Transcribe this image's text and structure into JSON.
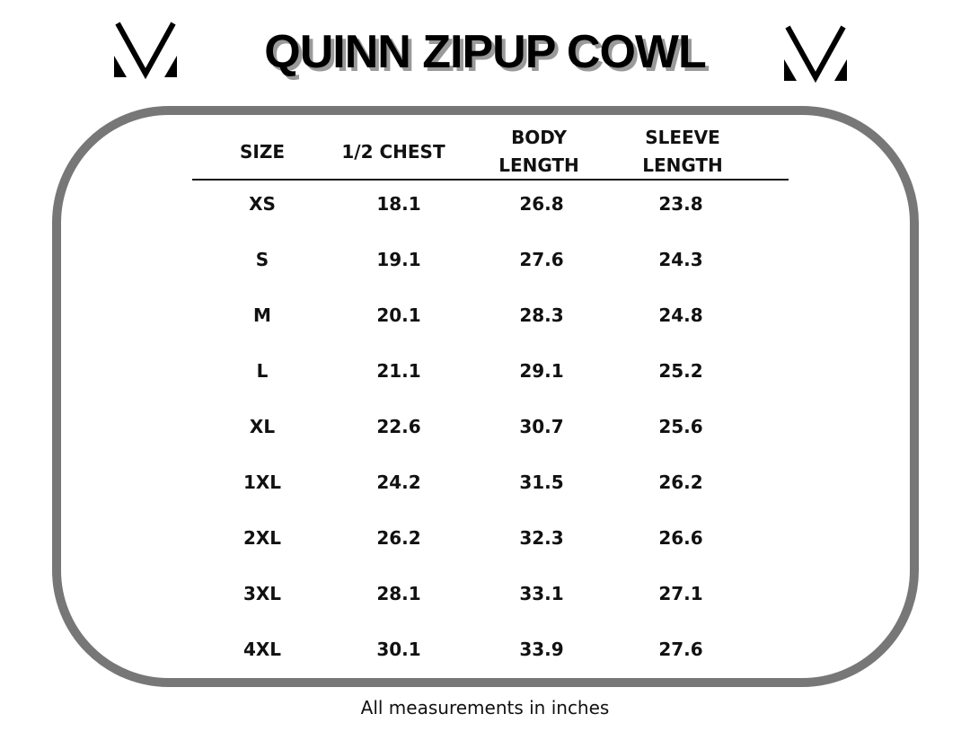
{
  "title": "QUINN ZIPUP COWL",
  "logo_icon": "v-monogram-logo",
  "headers": {
    "size": "SIZE",
    "chest": "1/2 CHEST",
    "body_1": "BODY",
    "body_2": "LENGTH",
    "sleeve_1": "SLEEVE",
    "sleeve_2": "LENGTH"
  },
  "rows": [
    {
      "size": "XS",
      "chest": "18.1",
      "body": "26.8",
      "sleeve": "23.8"
    },
    {
      "size": "S",
      "chest": "19.1",
      "body": "27.6",
      "sleeve": "24.3"
    },
    {
      "size": "M",
      "chest": "20.1",
      "body": "28.3",
      "sleeve": "24.8"
    },
    {
      "size": "L",
      "chest": "21.1",
      "body": "29.1",
      "sleeve": "25.2"
    },
    {
      "size": "XL",
      "chest": "22.6",
      "body": "30.7",
      "sleeve": "25.6"
    },
    {
      "size": "1XL",
      "chest": "24.2",
      "body": "31.5",
      "sleeve": "26.2"
    },
    {
      "size": "2XL",
      "chest": "26.2",
      "body": "32.3",
      "sleeve": "26.6"
    },
    {
      "size": "3XL",
      "chest": "28.1",
      "body": "33.1",
      "sleeve": "27.1"
    },
    {
      "size": "4XL",
      "chest": "30.1",
      "body": "33.9",
      "sleeve": "27.6"
    }
  ],
  "footer": "All measurements in inches",
  "colors": {
    "frame": "#777777",
    "text": "#111111"
  }
}
